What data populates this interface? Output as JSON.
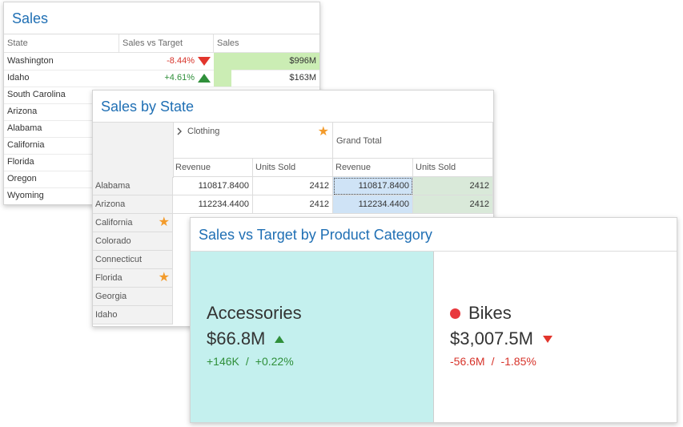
{
  "colors": {
    "title": "#1f6fb4",
    "positive": "#2f8f3a",
    "negative": "#d7342b",
    "sales_bar": "#cbedb4",
    "card_highlight": "#c4f0ee",
    "star": "#f39b2b"
  },
  "sales_grid": {
    "title": "Sales",
    "columns": [
      "State",
      "Sales vs Target",
      "Sales"
    ],
    "rows": [
      {
        "state": "Washington",
        "delta": "-8.44%",
        "direction": "down",
        "sales": "$996M",
        "bar_fraction": 1.0
      },
      {
        "state": "Idaho",
        "delta": "+4.61%",
        "direction": "up",
        "sales": "$163M",
        "bar_fraction": 0.164
      },
      {
        "state": "South Carolina"
      },
      {
        "state": "Arizona"
      },
      {
        "state": "Alabama"
      },
      {
        "state": "California"
      },
      {
        "state": "Florida"
      },
      {
        "state": "Oregon"
      },
      {
        "state": "Wyoming"
      }
    ]
  },
  "pivot": {
    "title": "Sales by State",
    "column_groups": [
      {
        "label": "Clothing",
        "expand_icon": "chevron-right-icon",
        "starred": true
      },
      {
        "label": "Grand Total"
      }
    ],
    "measures": [
      "Revenue",
      "Units Sold",
      "Revenue",
      "Units Sold"
    ],
    "rows": [
      {
        "state": "Alabama",
        "cells": [
          "110817.8400",
          "2412",
          "110817.8400",
          "2412"
        ]
      },
      {
        "state": "Arizona",
        "cells": [
          "112234.4400",
          "2412",
          "112234.4400",
          "2412"
        ]
      },
      {
        "state": "California",
        "starred": true
      },
      {
        "state": "Colorado"
      },
      {
        "state": "Connecticut"
      },
      {
        "state": "Florida",
        "starred": true
      },
      {
        "state": "Georgia"
      },
      {
        "state": "Idaho"
      }
    ]
  },
  "cards": {
    "title": "Sales vs Target by Product Category",
    "items": [
      {
        "name": "Accessories",
        "value": "$66.8M",
        "trend": "up",
        "abs_delta": "+146K",
        "sep": "/",
        "pct_delta": "+0.22%",
        "selected": true
      },
      {
        "name": "Bikes",
        "value": "$3,007.5M",
        "trend": "down",
        "abs_delta": "-56.6M",
        "sep": "/",
        "pct_delta": "-1.85%",
        "indicator": "red-dot"
      }
    ]
  }
}
